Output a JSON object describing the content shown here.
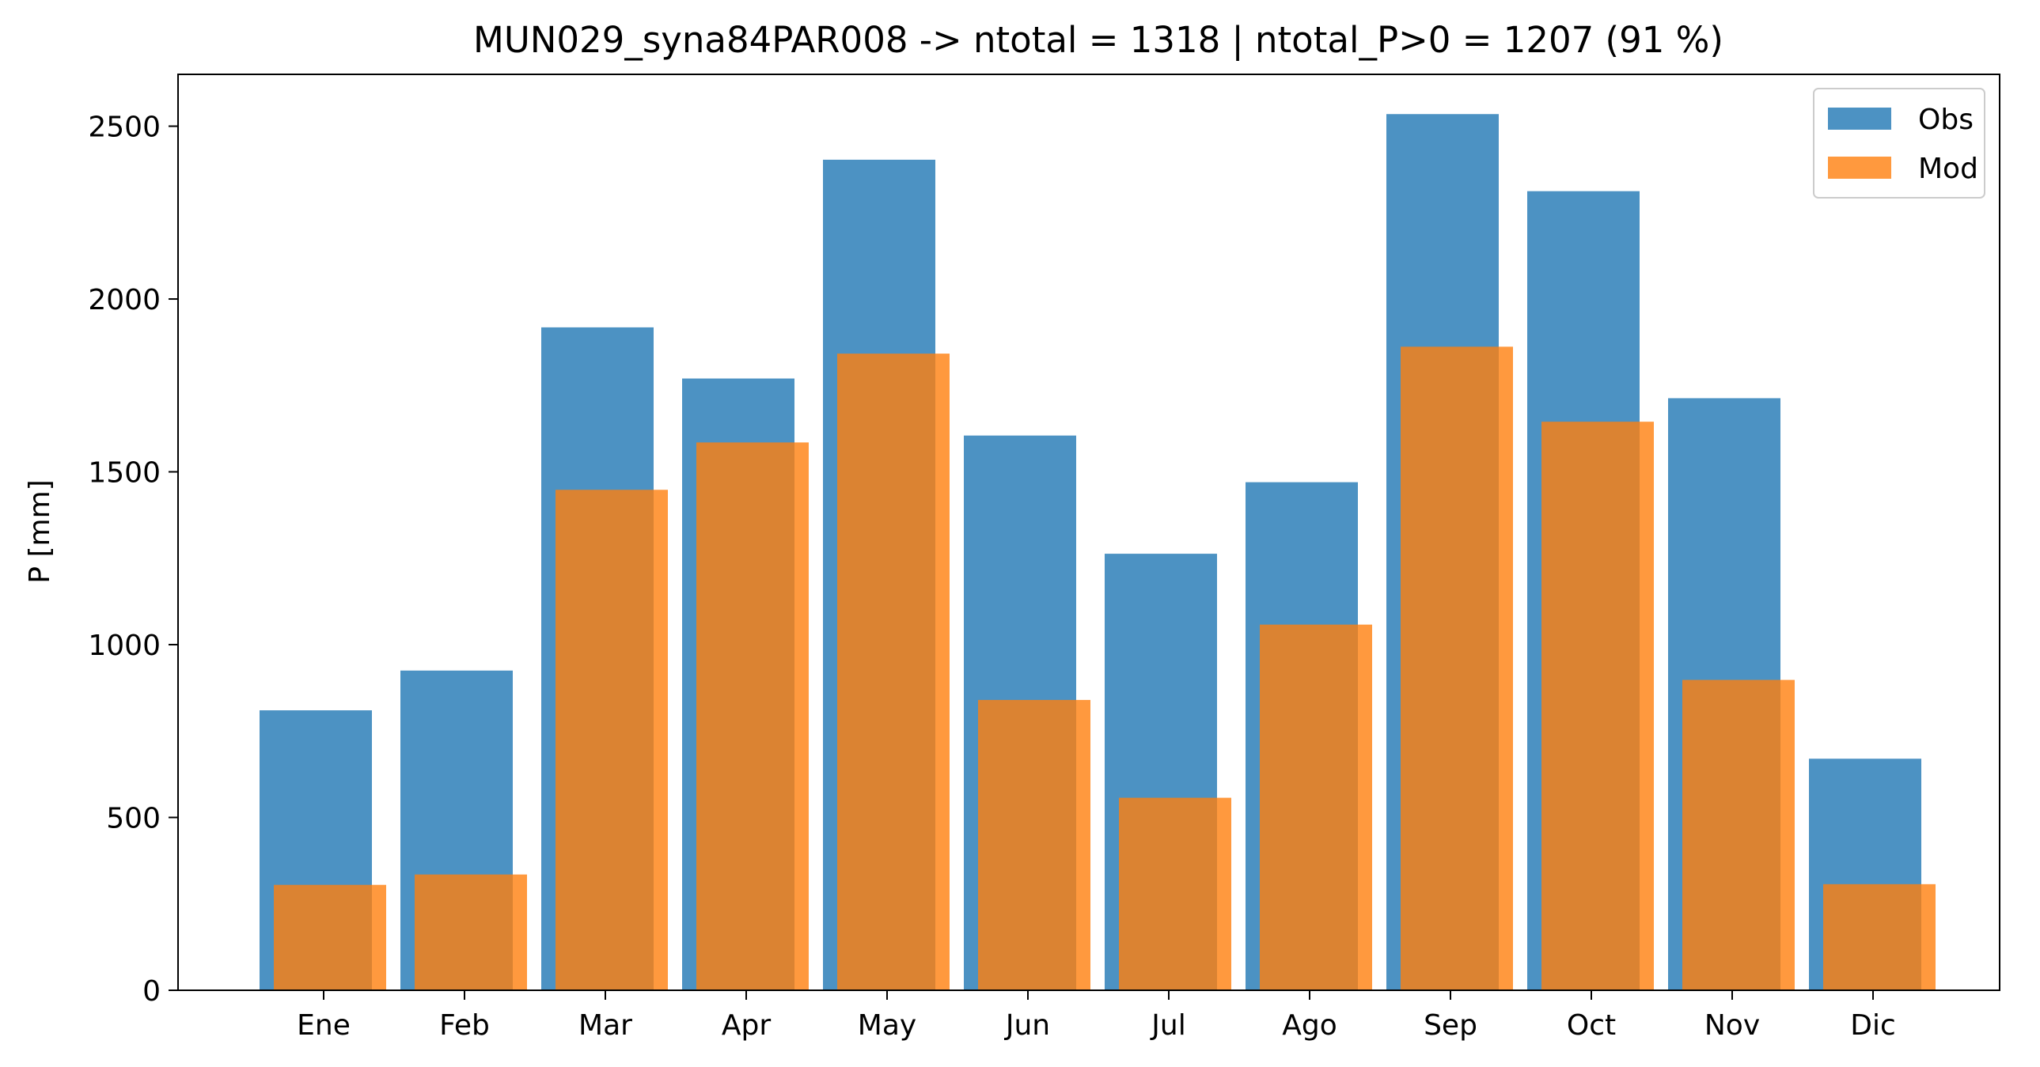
{
  "chart_data": {
    "type": "bar",
    "title": "MUN029_syna84PAR008 -> ntotal = 1318 | ntotal_P>0 = 1207 (91 %)",
    "xlabel": "",
    "ylabel": "P [mm]",
    "categories": [
      "Ene",
      "Feb",
      "Mar",
      "Apr",
      "May",
      "Jun",
      "Jul",
      "Ago",
      "Sep",
      "Oct",
      "Nov",
      "Dic"
    ],
    "series": [
      {
        "name": "Obs",
        "color": "#1f77b4",
        "values": [
          810,
          925,
          1918,
          1770,
          2403,
          1605,
          1263,
          1470,
          2535,
          2312,
          1713,
          670
        ]
      },
      {
        "name": "Mod",
        "color": "#ff7f0e",
        "values": [
          305,
          335,
          1448,
          1585,
          1842,
          840,
          557,
          1058,
          1862,
          1645,
          898,
          307
        ]
      }
    ],
    "ylim": [
      0,
      2650
    ],
    "yticks": [
      0,
      500,
      1000,
      1500,
      2000,
      2500
    ],
    "grid": false,
    "legend_position": "top-right"
  }
}
